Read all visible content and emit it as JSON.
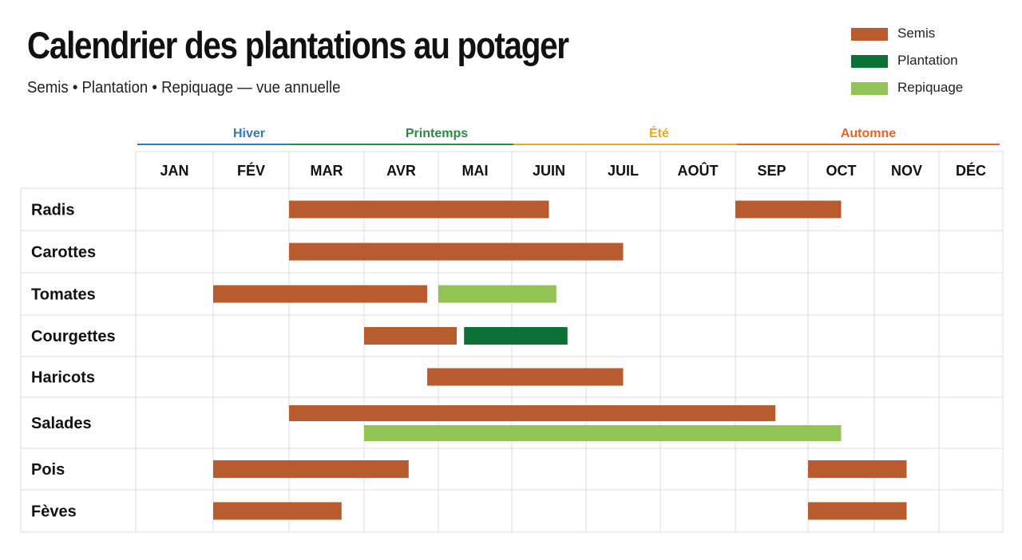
{
  "title": "Calendrier des plantations au potager",
  "subtitle": "Semis • Plantation • Repiquage — vue annuelle",
  "legend": [
    {
      "label": "Semis",
      "color": "#b85c30"
    },
    {
      "label": "Plantation",
      "color": "#0c7134"
    },
    {
      "label": "Repiquage",
      "color": "#93c355"
    }
  ],
  "chart_data": {
    "type": "gantt",
    "x_unit": "month",
    "xlim": [
      0,
      12
    ],
    "months": [
      "JAN",
      "FÉV",
      "MAR",
      "AVR",
      "MAI",
      "JUIN",
      "JUIL",
      "AOÛT",
      "SEP",
      "OCT",
      "NOV",
      "DÉC"
    ],
    "seasons": [
      {
        "label": "Hiver",
        "color": "#2e7bbd",
        "start_month": 1,
        "end_month": 3
      },
      {
        "label": "Printemps",
        "color": "#2a8a3e",
        "start_month": 3,
        "end_month": 6
      },
      {
        "label": "Été",
        "color": "#e8a820",
        "start_month": 6,
        "end_month": 9
      },
      {
        "label": "Automne",
        "color": "#e8622a",
        "start_month": 9,
        "end_month": 12
      }
    ],
    "crops": [
      {
        "name": "Radis",
        "tasks": [
          {
            "type": "Semis",
            "start": 2.0,
            "end": 5.5
          },
          {
            "type": "Semis",
            "start": 8.0,
            "end": 9.5
          }
        ]
      },
      {
        "name": "Carottes",
        "tasks": [
          {
            "type": "Semis",
            "start": 2.0,
            "end": 6.5
          }
        ]
      },
      {
        "name": "Tomates",
        "tasks": [
          {
            "type": "Semis",
            "start": 1.0,
            "end": 3.85
          },
          {
            "type": "Repiquage",
            "start": 4.0,
            "end": 5.6
          }
        ]
      },
      {
        "name": "Courgettes",
        "tasks": [
          {
            "type": "Semis",
            "start": 3.0,
            "end": 4.25
          },
          {
            "type": "Plantation",
            "start": 4.35,
            "end": 5.75
          }
        ]
      },
      {
        "name": "Haricots",
        "tasks": [
          {
            "type": "Semis",
            "start": 3.85,
            "end": 6.5
          }
        ]
      },
      {
        "name": "Salades",
        "tasks": [
          {
            "type": "Semis",
            "start": 2.0,
            "end": 8.55
          },
          {
            "type": "Repiquage",
            "start": 3.0,
            "end": 9.5
          }
        ]
      },
      {
        "name": "Pois",
        "tasks": [
          {
            "type": "Semis",
            "start": 1.0,
            "end": 3.6
          },
          {
            "type": "Semis",
            "start": 9.0,
            "end": 10.5
          }
        ]
      },
      {
        "name": "Fèves",
        "tasks": [
          {
            "type": "Semis",
            "start": 1.0,
            "end": 2.7
          },
          {
            "type": "Semis",
            "start": 9.0,
            "end": 10.5
          }
        ]
      }
    ],
    "colors": {
      "Semis": "#b85c30",
      "Plantation": "#0c7134",
      "Repiquage": "#93c355"
    },
    "grid": true,
    "legend_position": "top-right"
  }
}
